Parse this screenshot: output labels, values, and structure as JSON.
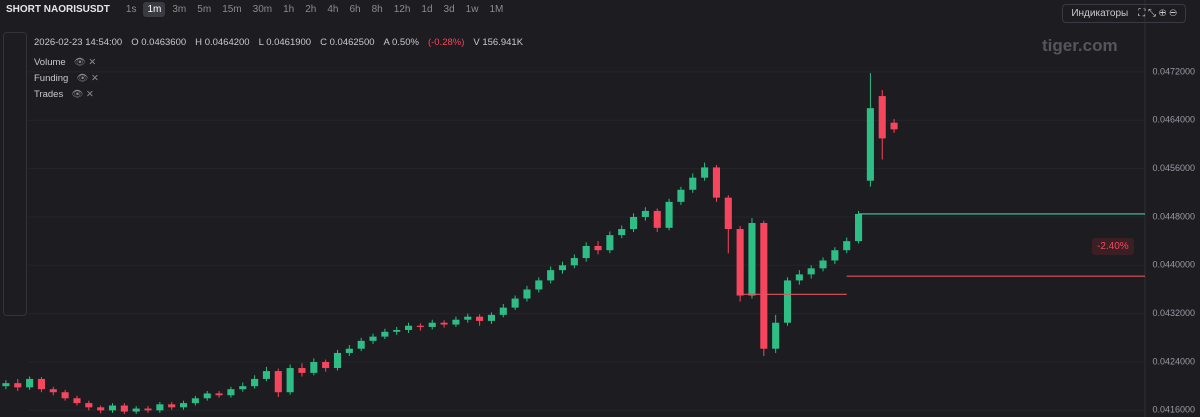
{
  "header": {
    "symbol": "SHORT NAORISUSDT",
    "timeframes": [
      "1s",
      "1m",
      "3m",
      "5m",
      "15m",
      "30m",
      "1h",
      "2h",
      "4h",
      "6h",
      "8h",
      "12h",
      "1d",
      "3d",
      "1w",
      "1M"
    ],
    "active_timeframe": "1m",
    "indicators_button": "Индикаторы"
  },
  "legend": {
    "time": "2026-02-23 14:54:00",
    "items": [
      {
        "label": "O",
        "value": "0.0463600"
      },
      {
        "label": "H",
        "value": "0.0464200"
      },
      {
        "label": "L",
        "value": "0.0461900"
      },
      {
        "label": "C",
        "value": "0.0462500"
      },
      {
        "label": "A",
        "value": "0.50%"
      }
    ],
    "change": "(-0.28%)",
    "volume": {
      "label": "V",
      "value": "156.941K"
    }
  },
  "indicators": [
    "Volume",
    "Funding",
    "Trades"
  ],
  "logo": "tiger.com",
  "badge": "-2.40%",
  "chart_data": {
    "type": "candlestick",
    "up_color": "#2ebd85",
    "down_color": "#f6465d",
    "grid": true,
    "ylim": [
      0.04149,
      0.04839
    ],
    "yticks": [
      {
        "value": 0.0416,
        "label": "0.0416000"
      },
      {
        "value": 0.0424,
        "label": "0.0424000"
      },
      {
        "value": 0.0432,
        "label": "0.0432000"
      },
      {
        "value": 0.044,
        "label": "0.0440000"
      },
      {
        "value": 0.0448,
        "label": "0.0448000"
      },
      {
        "value": 0.0456,
        "label": "0.0456000"
      },
      {
        "value": 0.0464,
        "label": "0.0464000"
      },
      {
        "value": 0.0472,
        "label": "0.0472000"
      }
    ],
    "open": [
      0.042,
      0.04205,
      0.04198,
      0.04212,
      0.04195,
      0.0419,
      0.0418,
      0.04172,
      0.04165,
      0.0416,
      0.04168,
      0.04158,
      0.04163,
      0.0416,
      0.0417,
      0.04165,
      0.04172,
      0.0418,
      0.04188,
      0.04185,
      0.04195,
      0.042,
      0.04212,
      0.04225,
      0.0419,
      0.0423,
      0.04222,
      0.0424,
      0.0423,
      0.04255,
      0.04262,
      0.04275,
      0.04282,
      0.0429,
      0.04293,
      0.043,
      0.04298,
      0.04305,
      0.04302,
      0.0431,
      0.04315,
      0.04308,
      0.04318,
      0.0433,
      0.04345,
      0.0436,
      0.04375,
      0.04392,
      0.044,
      0.04412,
      0.04432,
      0.04425,
      0.0445,
      0.0446,
      0.0448,
      0.0449,
      0.04462,
      0.04505,
      0.04525,
      0.04545,
      0.04562,
      0.04512,
      0.0446,
      0.0435,
      0.0447,
      0.04262,
      0.04305,
      0.04375,
      0.04385,
      0.04395,
      0.04408,
      0.04425,
      0.0444,
      0.0454,
      0.0468,
      0.04636
    ],
    "high": [
      0.0421,
      0.04212,
      0.04216,
      0.04215,
      0.04199,
      0.04194,
      0.04184,
      0.04176,
      0.04168,
      0.04172,
      0.04172,
      0.04167,
      0.04167,
      0.04174,
      0.04174,
      0.04176,
      0.04184,
      0.04192,
      0.04192,
      0.04199,
      0.04206,
      0.04218,
      0.04232,
      0.04229,
      0.04236,
      0.04238,
      0.04246,
      0.04244,
      0.0426,
      0.04268,
      0.0428,
      0.04287,
      0.04295,
      0.04298,
      0.04305,
      0.04304,
      0.0431,
      0.04309,
      0.04315,
      0.0432,
      0.04319,
      0.04322,
      0.04336,
      0.0435,
      0.04366,
      0.0438,
      0.04398,
      0.04406,
      0.04418,
      0.04438,
      0.0444,
      0.04456,
      0.04466,
      0.04486,
      0.04496,
      0.04494,
      0.0451,
      0.0453,
      0.04552,
      0.0457,
      0.04566,
      0.04516,
      0.04465,
      0.04478,
      0.04474,
      0.04318,
      0.0438,
      0.04392,
      0.044,
      0.04413,
      0.0443,
      0.04446,
      0.0449,
      0.04718,
      0.0469,
      0.04642
    ],
    "low": [
      0.04195,
      0.04192,
      0.04194,
      0.0419,
      0.04185,
      0.04176,
      0.04168,
      0.0416,
      0.04155,
      0.04156,
      0.04154,
      0.04154,
      0.04156,
      0.04156,
      0.04161,
      0.04161,
      0.04168,
      0.04176,
      0.04181,
      0.04181,
      0.04191,
      0.04196,
      0.04208,
      0.04182,
      0.04186,
      0.04216,
      0.04218,
      0.04224,
      0.04226,
      0.0425,
      0.04258,
      0.0427,
      0.04278,
      0.04285,
      0.04288,
      0.04292,
      0.04294,
      0.04297,
      0.04298,
      0.04305,
      0.043,
      0.04303,
      0.04314,
      0.04326,
      0.0434,
      0.04355,
      0.0437,
      0.04386,
      0.04395,
      0.04406,
      0.04418,
      0.0442,
      0.04445,
      0.04455,
      0.04474,
      0.04455,
      0.04458,
      0.045,
      0.0452,
      0.0454,
      0.04505,
      0.0442,
      0.0434,
      0.04345,
      0.0425,
      0.04255,
      0.043,
      0.04368,
      0.04378,
      0.0439,
      0.04402,
      0.0442,
      0.04436,
      0.0453,
      0.04575,
      0.04619
    ],
    "close": [
      0.04205,
      0.04198,
      0.04212,
      0.04195,
      0.0419,
      0.0418,
      0.04172,
      0.04165,
      0.0416,
      0.04168,
      0.04158,
      0.04163,
      0.0416,
      0.0417,
      0.04165,
      0.04172,
      0.0418,
      0.04188,
      0.04185,
      0.04195,
      0.042,
      0.04212,
      0.04225,
      0.0419,
      0.0423,
      0.04222,
      0.0424,
      0.0423,
      0.04255,
      0.04262,
      0.04275,
      0.04282,
      0.0429,
      0.04293,
      0.043,
      0.04298,
      0.04305,
      0.04302,
      0.0431,
      0.04315,
      0.04308,
      0.04318,
      0.0433,
      0.04345,
      0.0436,
      0.04375,
      0.04392,
      0.044,
      0.04412,
      0.04432,
      0.04425,
      0.0445,
      0.0446,
      0.0448,
      0.0449,
      0.04462,
      0.04505,
      0.04525,
      0.04545,
      0.04562,
      0.04512,
      0.0446,
      0.0435,
      0.0447,
      0.04262,
      0.04305,
      0.04375,
      0.04385,
      0.04395,
      0.04408,
      0.04425,
      0.0444,
      0.04485,
      0.0466,
      0.0461,
      0.04625
    ],
    "levels": [
      {
        "color": "#4fc2a8",
        "value": 0.04485,
        "start": 72
      },
      {
        "color": "#e0525f",
        "value": 0.04352,
        "start": 62,
        "end": 71
      },
      {
        "color": "#e0525f",
        "value": 0.04382,
        "start": 71
      }
    ]
  }
}
